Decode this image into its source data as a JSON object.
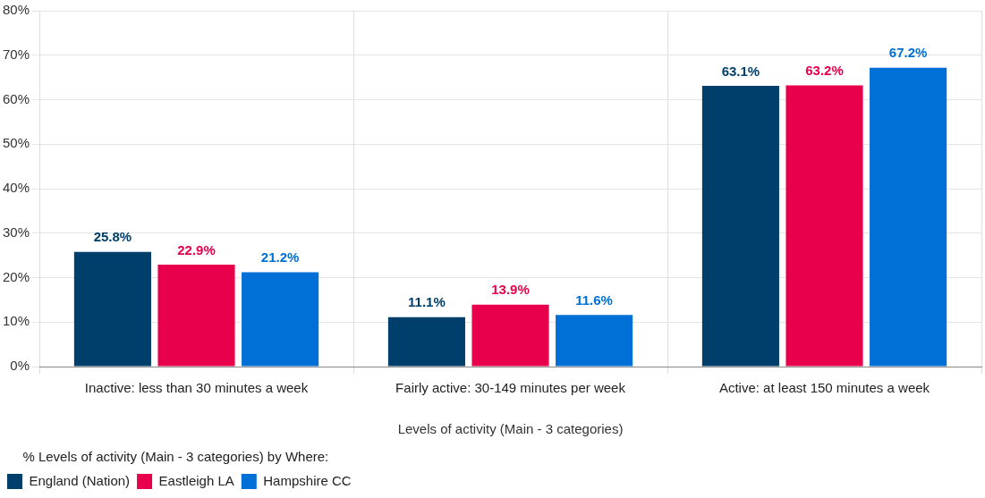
{
  "chart_data": {
    "type": "bar",
    "xlabel": "Levels of activity (Main - 3 categories)",
    "legend_title": "% Levels of activity (Main - 3 categories) by Where:",
    "categories": [
      "Inactive: less than 30 minutes a week",
      "Fairly active: 30-149 minutes per week",
      "Active: at least 150 minutes a week"
    ],
    "series": [
      {
        "name": "England (Nation)",
        "color": "#003f6b",
        "values": [
          25.8,
          11.1,
          63.1
        ],
        "value_labels": [
          "25.8%",
          "11.1%",
          "63.1%"
        ]
      },
      {
        "name": "Eastleigh LA",
        "color": "#e8004c",
        "values": [
          22.9,
          13.9,
          63.2
        ],
        "value_labels": [
          "22.9%",
          "13.9%",
          "63.2%"
        ]
      },
      {
        "name": "Hampshire CC",
        "color": "#0070d6",
        "values": [
          21.2,
          11.6,
          67.2
        ],
        "value_labels": [
          "21.2%",
          "11.6%",
          "67.2%"
        ]
      }
    ],
    "ylim": [
      0,
      80
    ],
    "yticks": [
      {
        "value": 0,
        "label": "0%"
      },
      {
        "value": 10,
        "label": "10%"
      },
      {
        "value": 20,
        "label": "20%"
      },
      {
        "value": 30,
        "label": "30%"
      },
      {
        "value": 40,
        "label": "40%"
      },
      {
        "value": 50,
        "label": "50%"
      },
      {
        "value": 60,
        "label": "60%"
      },
      {
        "value": 70,
        "label": "70%"
      },
      {
        "value": 80,
        "label": "80%"
      }
    ],
    "grid": true,
    "legend": "bottom left"
  }
}
